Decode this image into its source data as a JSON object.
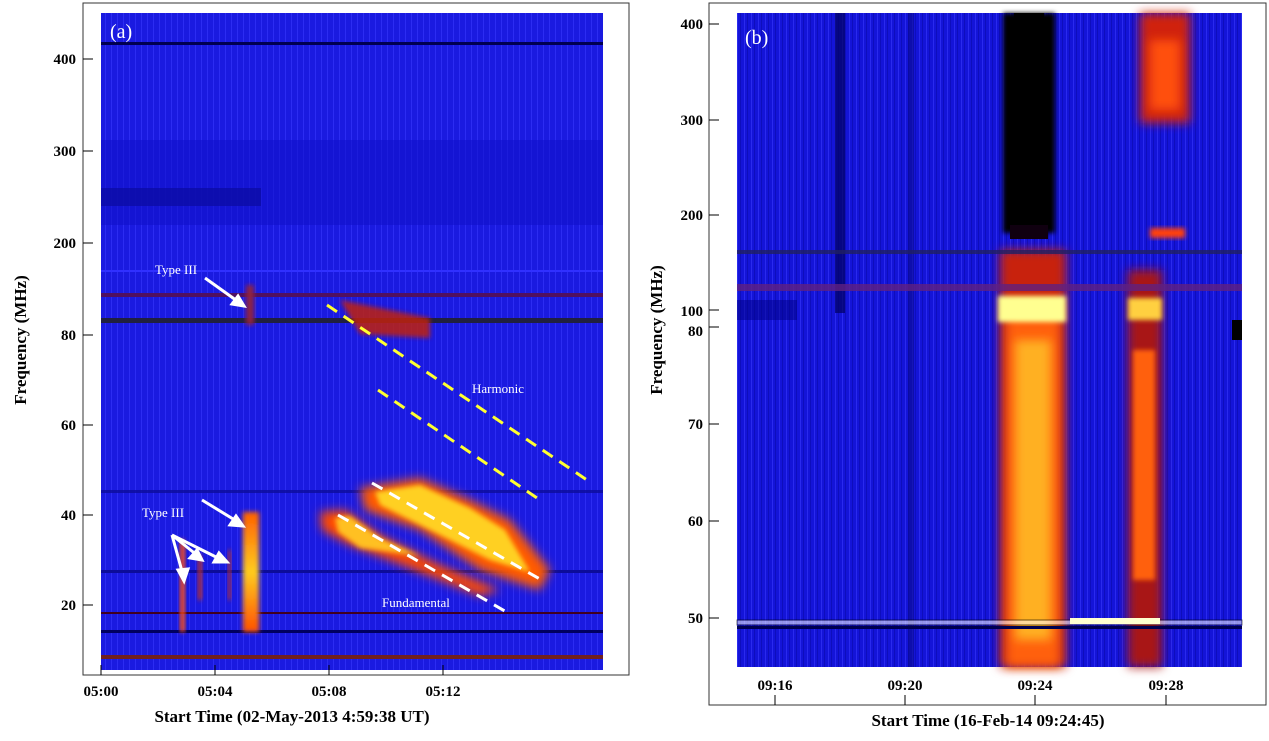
{
  "chart_data": [
    {
      "type": "heatmap",
      "panel_label": "(a)",
      "xlabel": "Start Time (02-May-2013 4:59:38 UT)",
      "ylabel": "Frequency (MHz)",
      "x_ticks": [
        "05:00",
        "05:04",
        "05:08",
        "05:12"
      ],
      "y_ticks": [
        "20",
        "40",
        "60",
        "80",
        "200",
        "300",
        "400"
      ],
      "colormap": [
        "#000000",
        "#0000c8",
        "#2a2af0",
        "#b01010",
        "#ff4000",
        "#ffd000",
        "#ffff90"
      ],
      "annotations": [
        {
          "text": "Type III",
          "x": "05:02:20",
          "y": "195 MHz"
        },
        {
          "text": "Type III",
          "x": "05:02:30",
          "y": "40 MHz"
        },
        {
          "text": "Harmonic",
          "x": "05:10:10",
          "y": "66 MHz"
        },
        {
          "text": "Fundamental",
          "x": "05:09:20",
          "y": "19 MHz"
        }
      ],
      "features": [
        {
          "name": "Type III burst",
          "time": "05:02:20",
          "freq_range": [
            14,
            34
          ]
        },
        {
          "name": "Type III burst",
          "time": "05:04:40",
          "freq_range": [
            14,
            40
          ]
        },
        {
          "name": "Type II harmonic lane",
          "time_range": [
            "05:07:30",
            "05:14:30"
          ],
          "freq_range": [
            45,
            86
          ]
        },
        {
          "name": "Type II fundamental lane",
          "time_range": [
            "05:07:30",
            "05:13:30"
          ],
          "freq_range": [
            24,
            45
          ]
        }
      ]
    },
    {
      "type": "heatmap",
      "panel_label": "(b)",
      "xlabel": "Start Time (16-Feb-14 09:24:45)",
      "ylabel": "Frequency (MHz)",
      "x_ticks": [
        "09:16",
        "09:20",
        "09:24",
        "09:28"
      ],
      "y_ticks": [
        "50",
        "60",
        "70",
        "80",
        "100",
        "200",
        "300",
        "400"
      ],
      "colormap": [
        "#000000",
        "#0000c8",
        "#2a2af0",
        "#b01010",
        "#ff4000",
        "#ffd000",
        "#ffff90"
      ],
      "features": [
        {
          "name": "intense emission",
          "time_range": [
            "09:23:00",
            "09:24:30"
          ],
          "freq_range": [
            45,
            160
          ]
        },
        {
          "name": "emission",
          "time_range": [
            "09:27:00",
            "09:27:40"
          ],
          "freq_range": [
            45,
            150
          ]
        },
        {
          "name": "emission",
          "time_range": [
            "09:28:00",
            "09:28:40"
          ],
          "freq_range": [
            300,
            400
          ]
        },
        {
          "name": "dark band",
          "time_range": [
            "09:23:00",
            "09:24:30"
          ],
          "freq_range": [
            180,
            420
          ]
        }
      ]
    }
  ]
}
